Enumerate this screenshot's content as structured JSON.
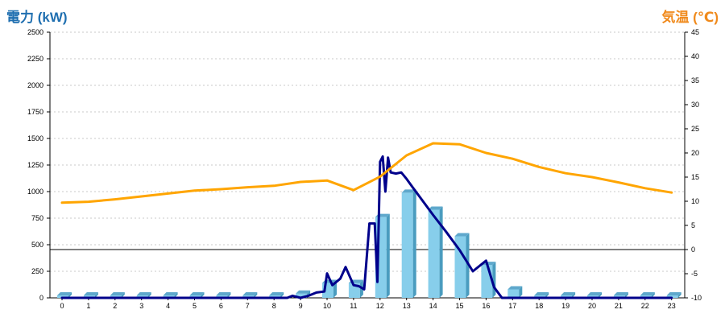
{
  "left_axis_title": "電力 (kW)",
  "right_axis_title": "気温 (℃)",
  "colors": {
    "left_title": "#1f6fb0",
    "right_title": "#f08a1c",
    "bar_front": "#87ceeb",
    "bar_side": "#4a9cbf",
    "bar_top": "#5fa8cc",
    "power_line": "#00008b",
    "temp_line": "#ffa500",
    "grid": "#c8c8c8",
    "zero_line": "#000000"
  },
  "chart_data": {
    "type": "bar+line",
    "x_label": "",
    "categories": [
      "0",
      "1",
      "2",
      "3",
      "4",
      "5",
      "6",
      "7",
      "8",
      "9",
      "10",
      "11",
      "12",
      "13",
      "14",
      "15",
      "16",
      "17",
      "18",
      "19",
      "20",
      "21",
      "22",
      "23"
    ],
    "left_axis": {
      "label": "電力 (kW)",
      "ylim": [
        0,
        2500
      ],
      "ticks": [
        0,
        250,
        500,
        750,
        1000,
        1250,
        1500,
        1750,
        2000,
        2250,
        2500
      ]
    },
    "right_axis": {
      "label": "気温 (℃)",
      "ylim": [
        -10,
        45
      ],
      "ticks": [
        -10,
        -5,
        0,
        5,
        10,
        15,
        20,
        25,
        30,
        35,
        40,
        45
      ]
    },
    "grid": "horizontal dashed",
    "series": [
      {
        "kind": "bar",
        "axis": "left",
        "values": [
          0,
          0,
          0,
          0,
          0,
          0,
          0,
          0,
          0,
          40,
          140,
          140,
          760,
          990,
          830,
          580,
          310,
          80,
          0,
          0,
          0,
          0,
          0,
          0
        ]
      },
      {
        "kind": "line",
        "axis": "left",
        "x": [
          0,
          1,
          2,
          3,
          4,
          5,
          6,
          7,
          7.5,
          8,
          8.3,
          8.5,
          8.7,
          9,
          9.3,
          9.6,
          9.9,
          10,
          10.2,
          10.5,
          10.7,
          11,
          11.2,
          11.4,
          11.6,
          11.8,
          11.9,
          12,
          12.1,
          12.2,
          12.3,
          12.4,
          12.6,
          12.8,
          13,
          13.2,
          13.5,
          14,
          14.5,
          15,
          15.5,
          16,
          16.3,
          16.6,
          17,
          17.5,
          18,
          19,
          20,
          21,
          22,
          23
        ],
        "y": [
          0,
          0,
          0,
          0,
          0,
          0,
          0,
          0,
          0,
          0,
          0,
          0,
          20,
          0,
          20,
          50,
          60,
          230,
          120,
          180,
          290,
          120,
          110,
          80,
          700,
          700,
          150,
          1280,
          1330,
          1000,
          1320,
          1180,
          1170,
          1180,
          1120,
          1050,
          950,
          780,
          620,
          450,
          250,
          350,
          100,
          0,
          0,
          0,
          0,
          0,
          0,
          0,
          0,
          0
        ]
      },
      {
        "kind": "line",
        "axis": "right",
        "x": [
          0,
          1,
          2,
          3,
          4,
          5,
          6,
          7,
          8,
          9,
          10,
          11,
          12,
          13,
          14,
          15,
          16,
          17,
          18,
          19,
          20,
          21,
          22,
          23
        ],
        "y": [
          9.7,
          9.9,
          10.4,
          11,
          11.6,
          12.2,
          12.5,
          12.9,
          13.2,
          14,
          14.3,
          12.3,
          15.1,
          19.5,
          22,
          21.8,
          20,
          18.8,
          17.1,
          15.8,
          15,
          13.9,
          12.7,
          11.8
        ]
      }
    ]
  }
}
